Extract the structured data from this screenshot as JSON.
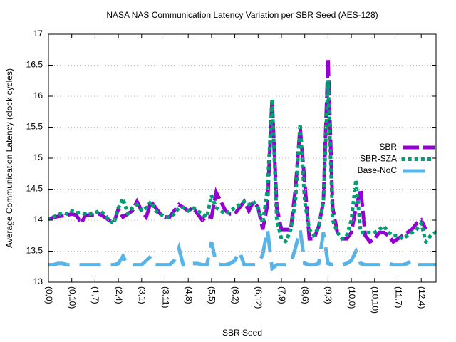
{
  "chart_data": {
    "type": "line",
    "title": "NASA NAS Communication Latency Variation per SBR Seed (AES-128)",
    "x_label": "SBR Seed",
    "y_label": "Average Communication Latency (clock cycles)",
    "categories": [
      "(0,0)",
      null,
      null,
      null,
      null,
      "(0,10)",
      null,
      null,
      null,
      null,
      "(1,7)",
      null,
      null,
      null,
      null,
      "(2,4)",
      null,
      null,
      null,
      null,
      "(3,1)",
      null,
      null,
      null,
      null,
      "(3,11)",
      null,
      null,
      null,
      null,
      "(4,8)",
      null,
      null,
      null,
      null,
      "(5,5)",
      null,
      null,
      null,
      null,
      "(6,2)",
      null,
      null,
      null,
      null,
      "(6,12)",
      null,
      null,
      null,
      null,
      "(7,9)",
      null,
      null,
      null,
      null,
      "(8,6)",
      null,
      null,
      null,
      null,
      "(9,3)",
      null,
      null,
      null,
      null,
      "(10,0)",
      null,
      null,
      null,
      null,
      "(10,10)",
      null,
      null,
      null,
      null,
      "(11,7)",
      null,
      null,
      null,
      null,
      "(12,4)",
      null,
      null,
      null,
      null
    ],
    "series": [
      {
        "name": "SBR",
        "color": "#9400d3",
        "style": "dashed",
        "values": [
          14.02,
          14.04,
          14.06,
          14.07,
          14.08,
          14.1,
          14.08,
          13.95,
          14.08,
          14.08,
          14.08,
          14.1,
          14.05,
          14.0,
          13.95,
          14.18,
          14.05,
          14.1,
          14.15,
          14.3,
          14.15,
          14.05,
          14.3,
          14.2,
          14.1,
          14.05,
          14.05,
          14.15,
          14.25,
          14.2,
          14.15,
          14.2,
          14.1,
          14.0,
          14.06,
          14.05,
          14.45,
          14.3,
          14.15,
          14.1,
          14.1,
          14.2,
          14.3,
          14.15,
          14.3,
          14.2,
          13.85,
          14.25,
          15.95,
          14.2,
          13.85,
          13.85,
          13.85,
          14.5,
          15.5,
          14.6,
          13.7,
          13.7,
          13.9,
          14.3,
          16.6,
          14.2,
          13.8,
          13.7,
          13.7,
          13.8,
          14.2,
          14.5,
          13.75,
          13.65,
          13.7,
          13.8,
          13.8,
          13.75,
          13.65,
          13.7,
          13.75,
          13.8,
          13.85,
          13.95,
          14.0,
          13.85,
          null,
          null,
          null
        ]
      },
      {
        "name": "SBR-SZA",
        "color": "#009e73",
        "style": "dotted",
        "values": [
          14.02,
          14.05,
          14.08,
          14.12,
          14.1,
          14.15,
          14.12,
          14.12,
          14.1,
          14.1,
          14.12,
          14.15,
          14.1,
          14.0,
          13.95,
          14.2,
          14.35,
          14.1,
          14.2,
          14.25,
          14.15,
          14.2,
          14.3,
          14.15,
          14.1,
          14.05,
          14.05,
          14.1,
          14.2,
          14.2,
          14.15,
          14.2,
          14.15,
          14.1,
          14.05,
          14.4,
          14.2,
          14.15,
          14.1,
          14.15,
          14.2,
          14.25,
          14.3,
          14.25,
          14.3,
          14.2,
          13.95,
          14.5,
          15.95,
          14.0,
          13.7,
          13.65,
          13.85,
          14.3,
          15.55,
          14.3,
          13.85,
          13.75,
          13.9,
          14.3,
          16.25,
          14.0,
          13.8,
          13.7,
          13.75,
          14.0,
          14.65,
          13.8,
          13.8,
          13.8,
          13.8,
          13.85,
          13.9,
          13.8,
          13.75,
          13.75,
          13.7,
          13.75,
          13.8,
          13.85,
          13.95,
          13.65,
          13.75,
          13.8,
          13.85
        ]
      },
      {
        "name": "Base-NoC",
        "color": "#56b4e9",
        "style": "longdash",
        "values": [
          13.28,
          13.28,
          13.3,
          13.3,
          13.28,
          13.28,
          13.28,
          13.28,
          13.28,
          13.28,
          13.28,
          13.28,
          13.28,
          13.28,
          13.28,
          13.3,
          13.42,
          13.28,
          13.28,
          13.28,
          13.28,
          13.35,
          13.42,
          13.28,
          13.28,
          13.28,
          13.28,
          13.35,
          13.55,
          13.25,
          13.28,
          13.3,
          13.3,
          13.28,
          13.28,
          13.65,
          13.3,
          13.28,
          13.28,
          13.3,
          13.35,
          13.5,
          13.28,
          13.28,
          13.28,
          13.28,
          13.45,
          13.85,
          13.22,
          13.28,
          13.28,
          13.28,
          13.3,
          13.55,
          13.85,
          13.3,
          13.28,
          13.28,
          13.3,
          13.8,
          13.3,
          13.28,
          13.28,
          13.28,
          13.3,
          13.35,
          13.5,
          13.3,
          13.28,
          13.28,
          13.28,
          13.28,
          13.28,
          13.3,
          13.28,
          13.28,
          13.28,
          13.3,
          13.35,
          13.28,
          13.28,
          13.28,
          13.28,
          13.28,
          13.28
        ]
      }
    ],
    "ylim": [
      13,
      17
    ],
    "yticks": [
      13,
      13.5,
      14,
      14.5,
      15,
      15.5,
      16,
      16.5,
      17
    ],
    "grid": true,
    "legend": "right"
  }
}
